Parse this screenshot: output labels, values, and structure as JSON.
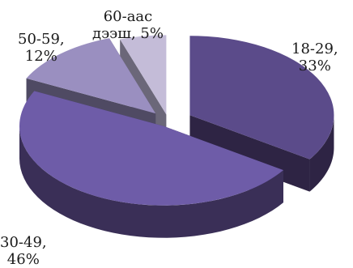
{
  "chart_data": {
    "type": "pie",
    "style": "3d-exploded",
    "slices": [
      {
        "name": "18-29,",
        "value": 33,
        "value_label": "33%",
        "color": "#5b4b8a",
        "side": "#2e2444"
      },
      {
        "name": "30-49,",
        "value": 46,
        "value_label": "46%",
        "color": "#6e5ca8",
        "side": "#3a2f57"
      },
      {
        "name": "50-59,",
        "value": 12,
        "value_label": "12%",
        "color": "#9a8fc0",
        "side": "#4f4a63"
      },
      {
        "name": "60-аас",
        "value": 5,
        "value_label": "дээш, 5%",
        "color": "#c4bcd8",
        "side": "#6b6779"
      }
    ]
  }
}
